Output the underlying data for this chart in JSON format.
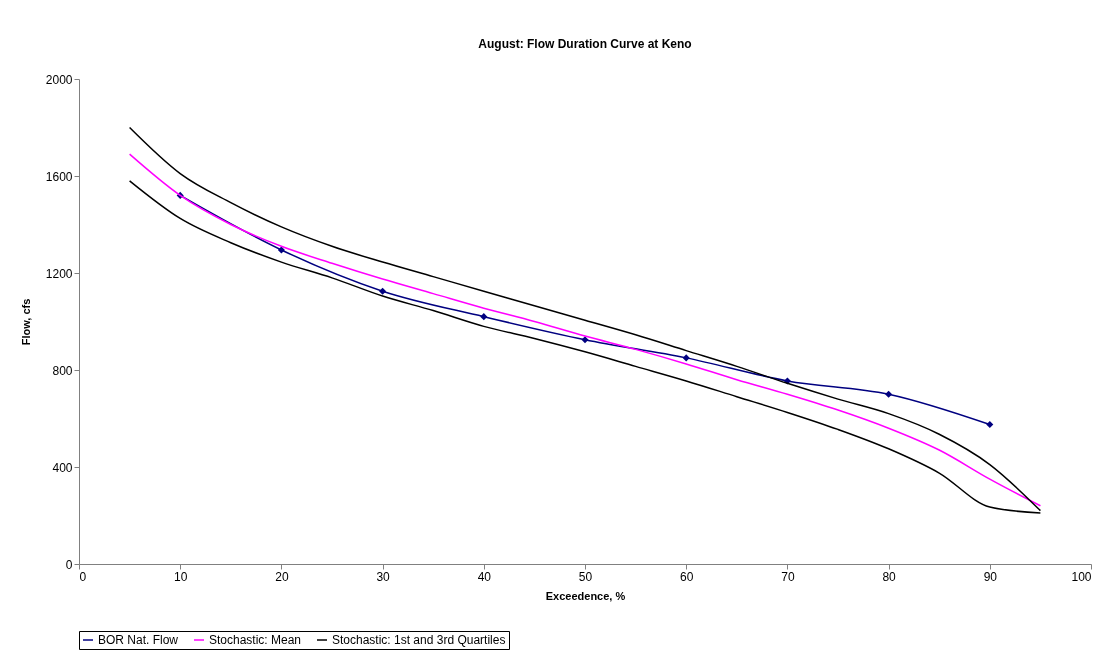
{
  "chart_data": {
    "type": "line",
    "title": "August: Flow Duration Curve at Keno",
    "xlabel": "Exceedence, %",
    "ylabel": "Flow, cfs",
    "xlim": [
      0,
      100
    ],
    "xticks": [
      0,
      10,
      20,
      30,
      40,
      50,
      60,
      70,
      80,
      90,
      100
    ],
    "ylim": [
      0,
      2000
    ],
    "yticks": [
      0,
      400,
      800,
      1200,
      1600,
      2000
    ],
    "grid": false,
    "legend": "bottom",
    "series": [
      {
        "name": "BOR Nat. Flow",
        "color": "#000080",
        "marker": "diamond",
        "x": [
          10,
          20,
          30,
          40,
          50,
          60,
          70,
          80,
          90
        ],
        "values": [
          1520,
          1295,
          1125,
          1020,
          925,
          850,
          755,
          700,
          575
        ]
      },
      {
        "name": "Stochastic: Mean",
        "color": "#ff00ff",
        "marker": "none",
        "x": [
          5,
          10,
          15,
          20,
          25,
          30,
          35,
          40,
          45,
          50,
          55,
          60,
          65,
          70,
          75,
          80,
          85,
          90,
          95
        ],
        "values": [
          1690,
          1520,
          1400,
          1310,
          1240,
          1175,
          1115,
          1055,
          1000,
          940,
          885,
          825,
          760,
          700,
          635,
          560,
          470,
          350,
          240
        ]
      },
      {
        "name": "Stochastic: 1st and 3rd Quartiles",
        "color": "#000000",
        "marker": "none",
        "x": [
          5,
          10,
          15,
          20,
          25,
          30,
          35,
          40,
          45,
          50,
          55,
          60,
          65,
          70,
          75,
          80,
          85,
          90,
          95
        ],
        "values": [
          1800,
          1610,
          1490,
          1390,
          1310,
          1245,
          1185,
          1125,
          1065,
          1005,
          945,
          880,
          815,
          745,
          680,
          620,
          535,
          410,
          220
        ]
      },
      {
        "color": "#000000",
        "marker": "none",
        "x": [
          5,
          10,
          15,
          20,
          25,
          30,
          35,
          40,
          45,
          50,
          55,
          60,
          65,
          70,
          75,
          80,
          85,
          90,
          95
        ],
        "values": [
          1580,
          1425,
          1325,
          1245,
          1180,
          1105,
          1045,
          980,
          930,
          875,
          815,
          755,
          690,
          625,
          555,
          475,
          375,
          235,
          210
        ]
      }
    ]
  }
}
